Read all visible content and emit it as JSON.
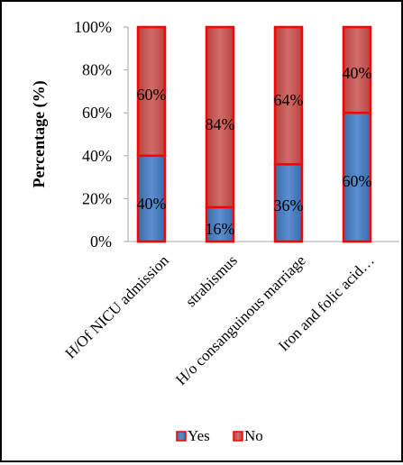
{
  "chart_data": {
    "type": "bar",
    "stacked": true,
    "percent_stacked": true,
    "ylabel": "Percentage (%)",
    "xlabel": "",
    "ylim": [
      0,
      100
    ],
    "y_ticks": [
      "0%",
      "20%",
      "40%",
      "60%",
      "80%",
      "100%"
    ],
    "grid": false,
    "legend": "bottom",
    "categories": [
      "H/Of NICU admission",
      "strabismus",
      "H/o consanguinous marriage",
      "Iron and folic acid…"
    ],
    "series": [
      {
        "name": "Yes",
        "values": [
          40,
          16,
          36,
          60
        ],
        "labels": [
          "40%",
          "16%",
          "36%",
          "60%"
        ],
        "color": "#4a7ebb",
        "edge": "#ff0000"
      },
      {
        "name": "No",
        "values": [
          60,
          84,
          64,
          40
        ],
        "labels": [
          "60%",
          "84%",
          "64%",
          "40%"
        ],
        "color": "#c0504d",
        "edge": "#ff0000"
      }
    ]
  }
}
